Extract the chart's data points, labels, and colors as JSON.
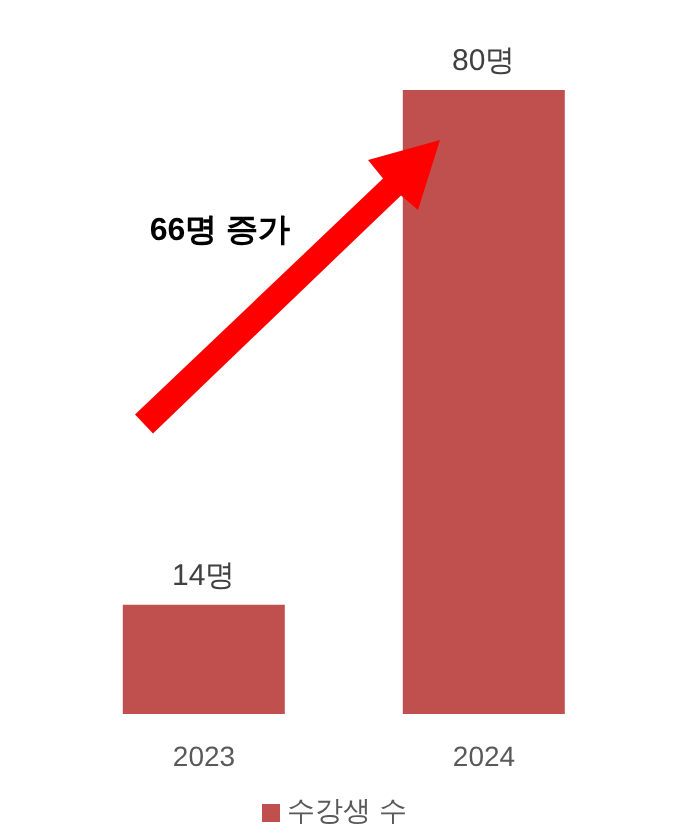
{
  "chart_data": {
    "type": "bar",
    "categories": [
      "2023",
      "2024"
    ],
    "series": [
      {
        "name": "수강생 수",
        "color": "#c0504d",
        "values": [
          14,
          80
        ],
        "value_labels": [
          "14명",
          "80명"
        ]
      }
    ],
    "annotations": [
      "66명 증가"
    ],
    "legend": "bottom",
    "grid": false
  }
}
